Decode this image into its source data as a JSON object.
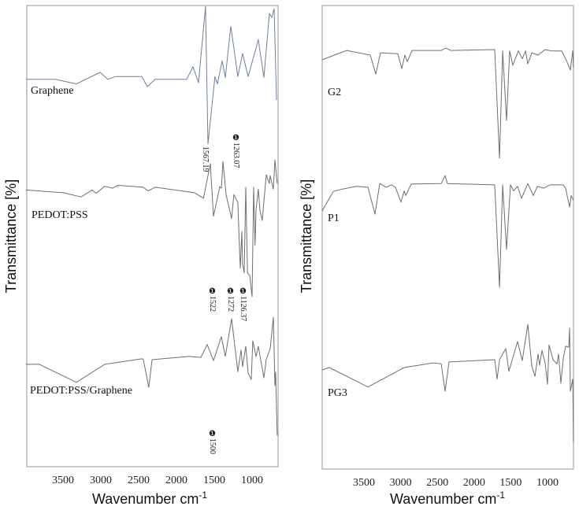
{
  "chart_data": [
    {
      "type": "line",
      "panel": "left",
      "xlabel": "Wavenumber cm",
      "xlabel_sup": "-1",
      "ylabel": "Transmittance [%]",
      "xlim": [
        3979,
        656
      ],
      "ylim": [
        0,
        100
      ],
      "x_reversed": true,
      "y_ticks_shown": false,
      "grid": false,
      "xticks": [
        3500,
        3000,
        2500,
        2000,
        1500,
        1000
      ],
      "series": [
        {
          "name": "Graphene",
          "color": "#6f7f99",
          "x": [
            3990,
            3604,
            3323,
            3010,
            2906,
            2802,
            2458,
            2385,
            2281,
            1865,
            1781,
            1708,
            1615,
            1583,
            1490,
            1458,
            1396,
            1354,
            1281,
            1188,
            1125,
            1052,
            917,
            844,
            771,
            740,
            708,
            677
          ],
          "y": [
            84,
            84,
            83,
            85.5,
            84,
            84.6,
            84.6,
            82.4,
            84,
            84,
            86.7,
            83.3,
            99.8,
            70,
            84.6,
            83,
            88,
            84.4,
            95.5,
            84.6,
            89.6,
            84.6,
            92.6,
            84.4,
            98.3,
            97.4,
            99.3,
            79.5
          ]
        },
        {
          "name": "PEDOT:PSS",
          "color": "#6e6e6e",
          "x": [
            3990,
            3500,
            3260,
            3115,
            3062,
            2948,
            2844,
            2771,
            2438,
            2375,
            2281,
            1760,
            1642,
            1552,
            1510,
            1427,
            1406,
            1385,
            1344,
            1271,
            1240,
            1188,
            1156,
            1135,
            1125,
            1104,
            1083,
            1060,
            1031,
            1000,
            979,
            960,
            948,
            917,
            896,
            865,
            812,
            771,
            760,
            719,
            698,
            667
          ],
          "y": [
            60,
            59.4,
            58.5,
            60,
            59.3,
            60.8,
            60.4,
            61,
            60.6,
            59.8,
            60.6,
            59.4,
            58.2,
            65.7,
            54.3,
            60.7,
            60.4,
            66.2,
            59,
            53.8,
            59,
            57.3,
            43,
            51,
            44,
            42,
            60.6,
            42,
            41.5,
            36.9,
            60.6,
            48,
            55.6,
            60.2,
            55.6,
            53.4,
            63.3,
            61.4,
            63.1,
            60.2,
            66.5,
            61.4
          ]
        },
        {
          "name": "PEDOT:PSS/Graphene",
          "color": "#6e6e6e",
          "x": [
            3990,
            3812,
            3323,
            2948,
            2458,
            2438,
            2365,
            2323,
            1833,
            1677,
            1594,
            1510,
            1406,
            1354,
            1271,
            1188,
            1146,
            1125,
            1083,
            1052,
            1010,
            990,
            948,
            917,
            844,
            812,
            760,
            719,
            698,
            688,
            667
          ],
          "y": [
            22.2,
            22.2,
            18.3,
            22.2,
            23.4,
            23.3,
            17.2,
            23.2,
            23.9,
            23.7,
            26.5,
            23,
            28.2,
            23.9,
            32.1,
            20.6,
            25.3,
            21.7,
            26.1,
            20.3,
            18.9,
            27.3,
            23.9,
            26.1,
            19.3,
            23.3,
            25.6,
            32.4,
            17.6,
            20.5,
            6.8
          ]
        }
      ],
      "annotations": [
        "1567.19",
        "❶1263.07",
        "❶1522",
        "❶1272",
        "❶1126.37",
        "❶1500"
      ]
    },
    {
      "type": "line",
      "panel": "right",
      "xlabel": "Wavenumber cm",
      "xlabel_sup": "-1",
      "ylabel": "Transmittance [%]",
      "xlim": [
        4069,
        646
      ],
      "ylim": [
        0,
        100
      ],
      "x_reversed": true,
      "y_ticks_shown": false,
      "grid": false,
      "xticks": [
        3500,
        3000,
        2500,
        2000,
        1500,
        1000
      ],
      "series": [
        {
          "name": "G2",
          "color": "#6e6e6e",
          "x": [
            4069,
            3736,
            3414,
            3339,
            3275,
            3039,
            2985,
            2942,
            2910,
            2845,
            2448,
            2384,
            2320,
            1719,
            1654,
            1611,
            1558,
            1515,
            1472,
            1397,
            1343,
            1300,
            1268,
            1214,
            1129,
            1032,
            946,
            807,
            742,
            689,
            656,
            646
          ],
          "y": [
            88.3,
            90.3,
            89.3,
            85.2,
            89.8,
            89.6,
            86.4,
            89.3,
            87.9,
            90.3,
            90.3,
            90.8,
            90.3,
            90.5,
            67.1,
            90.2,
            75.2,
            90.2,
            87.1,
            90.2,
            88.5,
            90.2,
            87.4,
            89.8,
            89.3,
            90.5,
            90.2,
            90.2,
            88.1,
            86.1,
            90.2,
            86.6
          ]
        },
        {
          "name": "P1",
          "color": "#6e6e6e",
          "x": [
            4069,
            3918,
            3790,
            3607,
            3446,
            3350,
            3285,
            3200,
            3125,
            3071,
            2996,
            2953,
            2931,
            2856,
            2448,
            2395,
            2363,
            1719,
            1654,
            1611,
            1558,
            1504,
            1461,
            1408,
            1354,
            1268,
            1193,
            1139,
            1054,
            968,
            786,
            753,
            699,
            678,
            646
          ],
          "y": [
            55.7,
            59.9,
            60.4,
            61,
            60.8,
            55,
            61.6,
            60.8,
            61.3,
            60.8,
            57.6,
            60,
            59,
            61.5,
            61.6,
            63.3,
            61.6,
            61.3,
            39.2,
            61.3,
            47.4,
            61.3,
            60,
            61,
            58.4,
            61.6,
            59,
            61,
            60.6,
            61.3,
            61.3,
            60.6,
            56.5,
            59,
            58
          ]
        },
        {
          "name": "PG3",
          "color": "#6e6e6e",
          "x": [
            4069,
            3972,
            3446,
            2953,
            2556,
            2448,
            2395,
            2341,
            1719,
            1687,
            1654,
            1568,
            1526,
            1408,
            1343,
            1268,
            1214,
            1171,
            1129,
            1107,
            1075,
            1032,
            1000,
            979,
            925,
            871,
            850,
            818,
            786,
            753,
            710,
            699,
            689,
            656,
            646
          ],
          "y": [
            21.4,
            21.9,
            17.7,
            21.9,
            22.9,
            22.7,
            16.8,
            23.1,
            23.6,
            19.4,
            23.6,
            26,
            21.1,
            27.5,
            23.4,
            31.2,
            22.2,
            20,
            24.8,
            22.4,
            25.6,
            22.9,
            18.3,
            26.8,
            23.6,
            22.7,
            24.8,
            18.5,
            23.8,
            26.5,
            26.3,
            30.4,
            16.8,
            19.4,
            5.8
          ]
        }
      ]
    }
  ]
}
